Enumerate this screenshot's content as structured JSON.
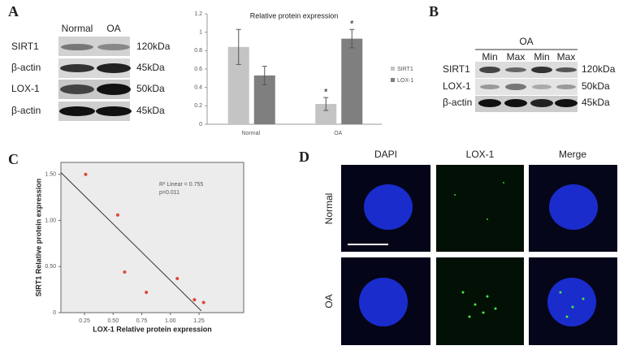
{
  "panels": {
    "a": "A",
    "b": "B",
    "c": "C",
    "d": "D"
  },
  "blot_a": {
    "groups": [
      "Normal",
      "OA"
    ],
    "rows": [
      {
        "protein": "SIRT1",
        "size": "120kDa"
      },
      {
        "protein": "β-actin",
        "size": "45kDa"
      },
      {
        "protein": "LOX-1",
        "size": "50kDa"
      },
      {
        "protein": "β-actin",
        "size": "45kDa"
      }
    ]
  },
  "blot_b": {
    "group": "OA",
    "lanes": [
      "Min",
      "Max",
      "Min",
      "Max"
    ],
    "rows": [
      {
        "protein": "SIRT1",
        "size": "120kDa"
      },
      {
        "protein": "LOX-1",
        "size": "50kDa"
      },
      {
        "protein": "β-actin",
        "size": "45kDa"
      }
    ]
  },
  "imaging": {
    "columns": [
      "DAPI",
      "LOX-1",
      "Merge"
    ],
    "rows": [
      "Normal",
      "OA"
    ]
  },
  "chart_data": [
    {
      "type": "bar",
      "title": "Relative protein expression",
      "categories": [
        "Normal",
        "OA"
      ],
      "series": [
        {
          "name": "SIRT1",
          "color": "#c4c4c4",
          "values": [
            0.84,
            0.22
          ],
          "errors": [
            0.19,
            0.07
          ]
        },
        {
          "name": "LOX-1",
          "color": "#7f7f7f",
          "values": [
            0.53,
            0.93
          ],
          "errors": [
            0.1,
            0.1
          ]
        }
      ],
      "annotations": [
        "*",
        "*"
      ],
      "ylim": [
        0,
        1.2
      ],
      "yticks": [
        0,
        0.2,
        0.4,
        0.6,
        0.8,
        1,
        1.2
      ],
      "legend": "right"
    },
    {
      "type": "scatter",
      "x_label": "LOX-1 Relative protein expression",
      "y_label": "SIRT1 Relative protein expression",
      "annotations": [
        "R² Linear = 0.755",
        "p=0.011"
      ],
      "x": [
        0.26,
        0.54,
        0.6,
        0.79,
        1.06,
        1.21,
        1.29
      ],
      "values": [
        1.5,
        1.06,
        0.44,
        0.22,
        0.37,
        0.14,
        0.11
      ],
      "color": "#e0463c",
      "trendline": {
        "x": [
          0.044,
          1.27
        ],
        "y": [
          1.52,
          0.02
        ]
      },
      "xlim": [
        0.044,
        1.64
      ],
      "ylim": [
        0,
        1.63
      ],
      "xticks": [
        0.25,
        {
          "value": 0.5,
          "label": "0.50"
        },
        0.75,
        {
          "value": 1,
          "label": "1.00"
        },
        1.25
      ],
      "yticks": [
        0,
        {
          "value": 0.5,
          "label": "0.50"
        },
        {
          "value": 1,
          "label": "1.00"
        },
        {
          "value": 1.5,
          "label": "1.50"
        }
      ]
    }
  ]
}
